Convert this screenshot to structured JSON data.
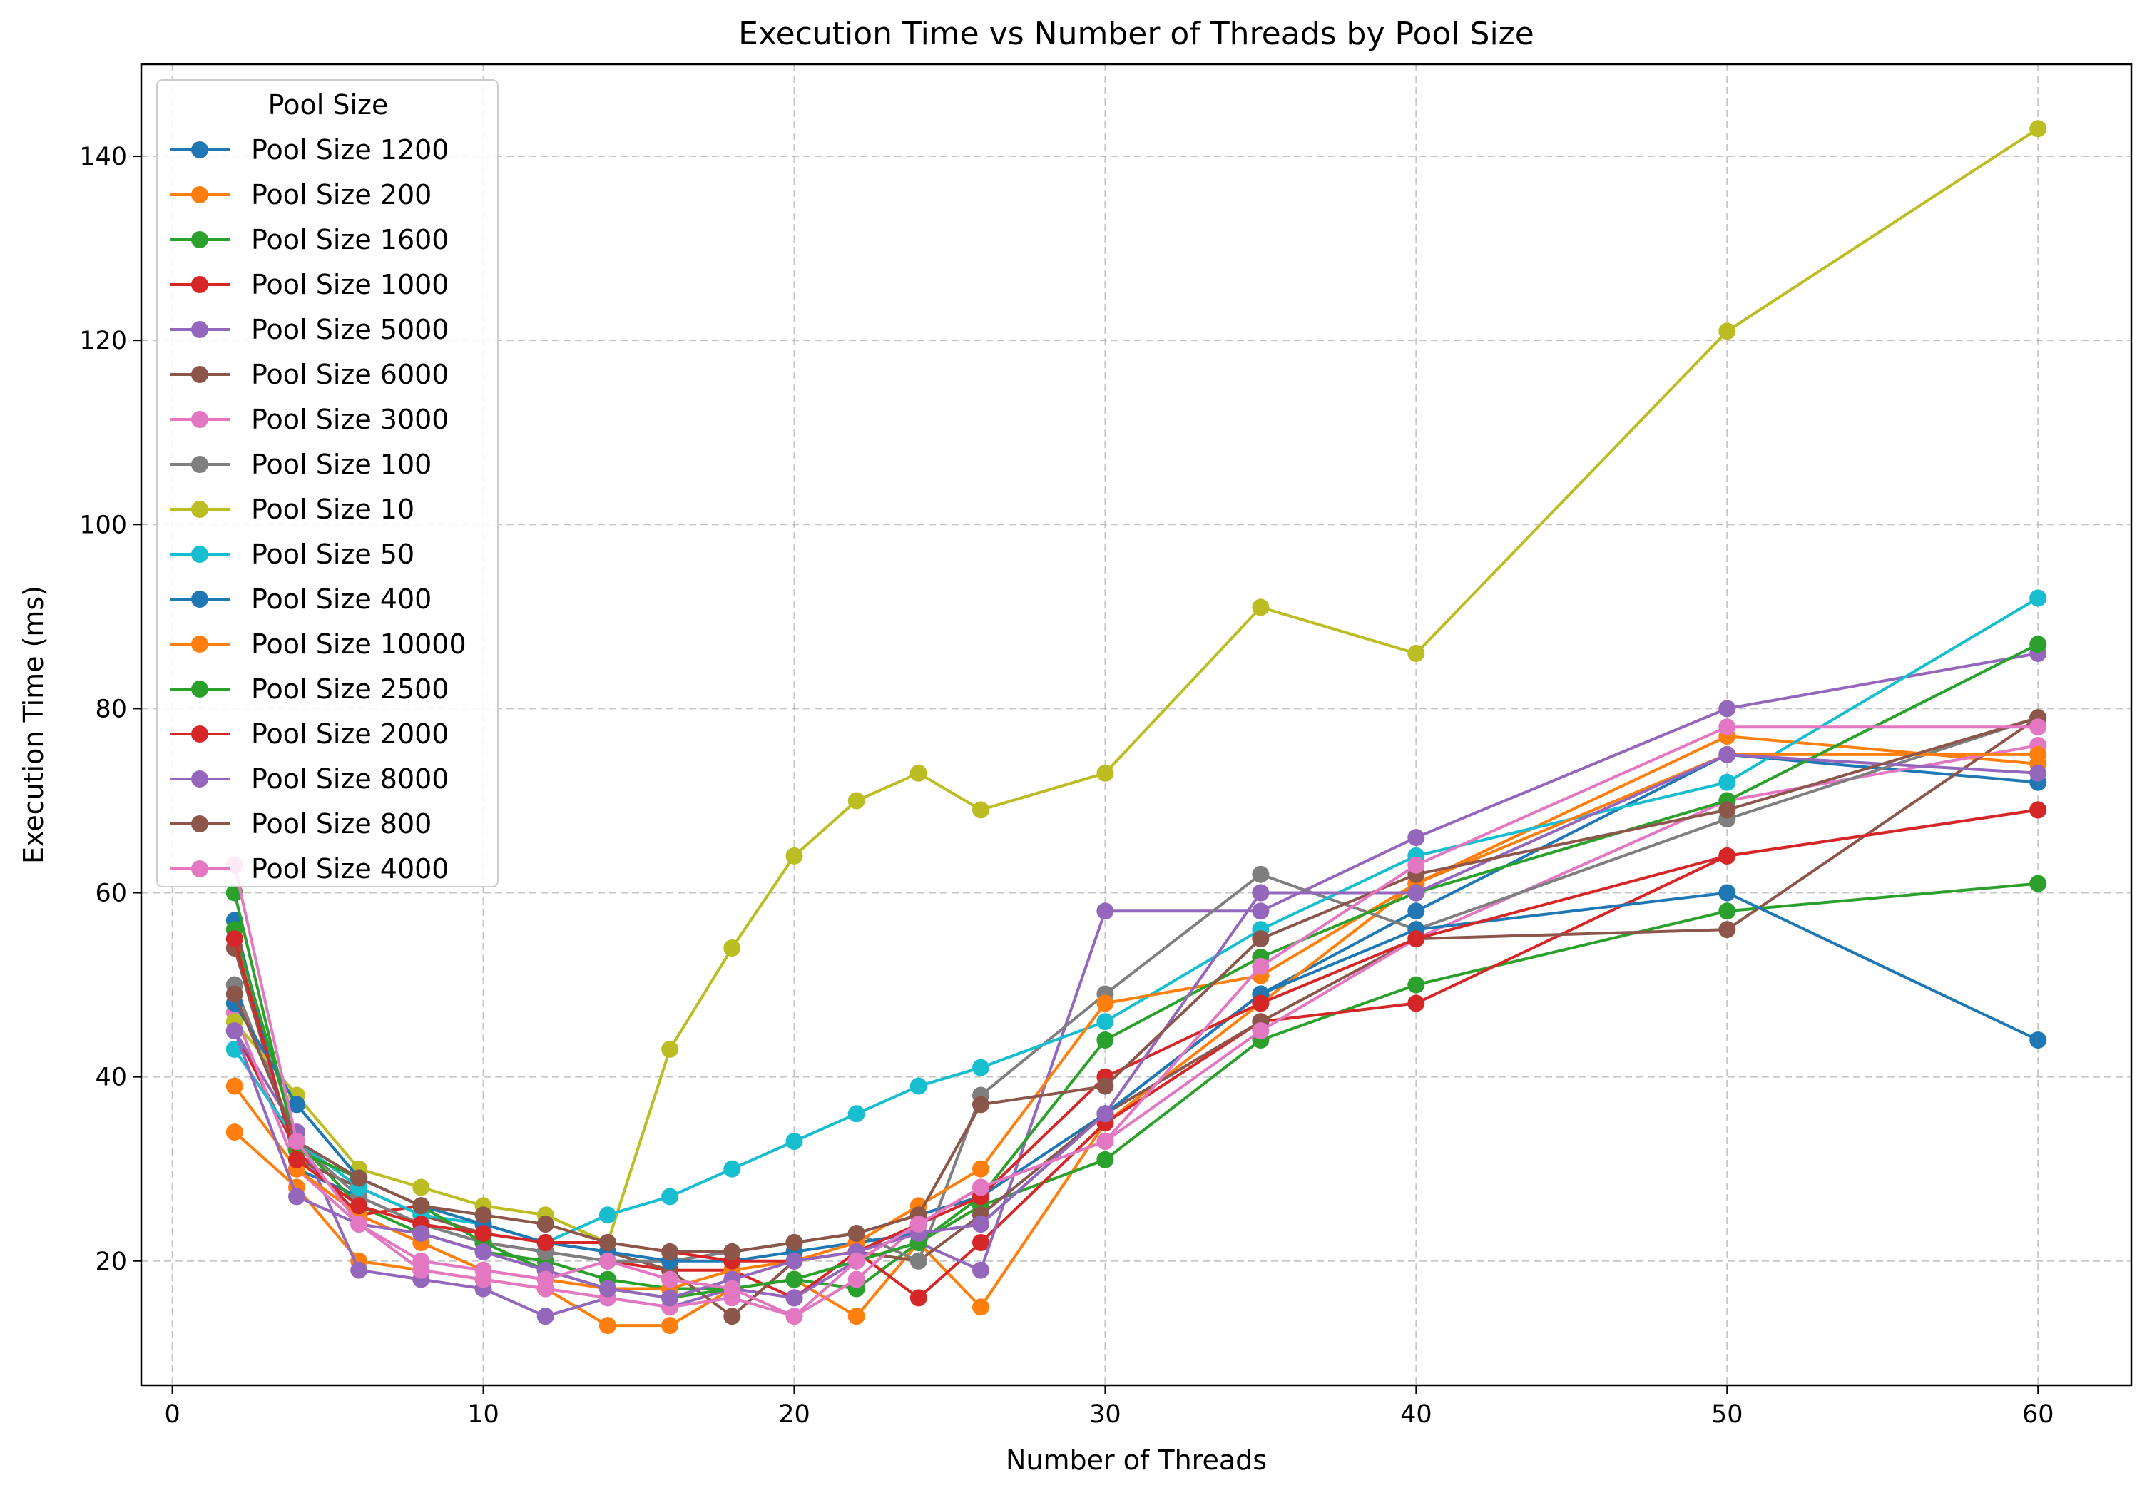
{
  "chart_data": {
    "type": "line",
    "title": "Execution Time vs Number of Threads by Pool Size",
    "xlabel": "Number of Threads",
    "ylabel": "Execution Time (ms)",
    "xlim": [
      -1,
      63
    ],
    "ylim": [
      6.5,
      150
    ],
    "xticks": [
      0,
      10,
      20,
      30,
      40,
      50,
      60
    ],
    "yticks": [
      20,
      40,
      60,
      80,
      100,
      120,
      140
    ],
    "grid": true,
    "legend_title": "Pool Size",
    "legend_position": "upper-left",
    "series": [
      {
        "name": "Pool Size 1200",
        "color": "#1f77b4",
        "points": [
          [
            2,
            57
          ],
          [
            4,
            30
          ],
          [
            6,
            27
          ],
          [
            8,
            24
          ],
          [
            10,
            22
          ],
          [
            12,
            21
          ],
          [
            14,
            20
          ],
          [
            16,
            20
          ],
          [
            18,
            21
          ],
          [
            20,
            22
          ],
          [
            22,
            23
          ],
          [
            24,
            25
          ],
          [
            26,
            27
          ],
          [
            30,
            36
          ],
          [
            35,
            49
          ],
          [
            40,
            58
          ],
          [
            50,
            75
          ],
          [
            60,
            72
          ]
        ]
      },
      {
        "name": "Pool Size 200",
        "color": "#ff7f0e",
        "points": [
          [
            2,
            34
          ],
          [
            4,
            28
          ],
          [
            6,
            20
          ],
          [
            8,
            19
          ],
          [
            10,
            18
          ],
          [
            12,
            17
          ],
          [
            14,
            13
          ],
          [
            16,
            13
          ],
          [
            18,
            17
          ],
          [
            20,
            18
          ],
          [
            22,
            14
          ],
          [
            24,
            22
          ],
          [
            26,
            15
          ],
          [
            30,
            35
          ],
          [
            35,
            48
          ],
          [
            40,
            61
          ],
          [
            50,
            77
          ],
          [
            60,
            74
          ]
        ]
      },
      {
        "name": "Pool Size 1600",
        "color": "#2ca02c",
        "points": [
          [
            2,
            56
          ],
          [
            4,
            33
          ],
          [
            6,
            26
          ],
          [
            8,
            23
          ],
          [
            10,
            21
          ],
          [
            12,
            20
          ],
          [
            14,
            18
          ],
          [
            16,
            17
          ],
          [
            18,
            17
          ],
          [
            20,
            18
          ],
          [
            22,
            17
          ],
          [
            24,
            22
          ],
          [
            26,
            26
          ],
          [
            30,
            31
          ],
          [
            35,
            44
          ],
          [
            40,
            50
          ],
          [
            50,
            58
          ],
          [
            60,
            61
          ]
        ]
      },
      {
        "name": "Pool Size 1000",
        "color": "#d62728",
        "points": [
          [
            2,
            45
          ],
          [
            4,
            32
          ],
          [
            6,
            25
          ],
          [
            8,
            26
          ],
          [
            10,
            22
          ],
          [
            12,
            21
          ],
          [
            14,
            20
          ],
          [
            16,
            19
          ],
          [
            18,
            19
          ],
          [
            20,
            16
          ],
          [
            22,
            21
          ],
          [
            24,
            16
          ],
          [
            26,
            22
          ],
          [
            30,
            35
          ],
          [
            35,
            46
          ],
          [
            40,
            48
          ],
          [
            50,
            64
          ],
          [
            60,
            69
          ]
        ]
      },
      {
        "name": "Pool Size 5000",
        "color": "#9467bd",
        "points": [
          [
            2,
            45
          ],
          [
            4,
            34
          ],
          [
            6,
            19
          ],
          [
            8,
            18
          ],
          [
            10,
            17
          ],
          [
            12,
            14
          ],
          [
            14,
            16
          ],
          [
            16,
            15
          ],
          [
            18,
            17
          ],
          [
            20,
            16
          ],
          [
            22,
            20
          ],
          [
            24,
            22
          ],
          [
            26,
            19
          ],
          [
            30,
            58
          ],
          [
            35,
            58
          ],
          [
            40,
            66
          ],
          [
            50,
            80
          ],
          [
            60,
            86
          ]
        ]
      },
      {
        "name": "Pool Size 6000",
        "color": "#8c564b",
        "points": [
          [
            2,
            54
          ],
          [
            4,
            31
          ],
          [
            6,
            28
          ],
          [
            8,
            25
          ],
          [
            10,
            23
          ],
          [
            12,
            22
          ],
          [
            14,
            21
          ],
          [
            16,
            19
          ],
          [
            18,
            14
          ],
          [
            20,
            20
          ],
          [
            22,
            21
          ],
          [
            24,
            20
          ],
          [
            26,
            25
          ],
          [
            30,
            36
          ],
          [
            35,
            46
          ],
          [
            40,
            55
          ],
          [
            50,
            56
          ],
          [
            60,
            79
          ]
        ]
      },
      {
        "name": "Pool Size 3000",
        "color": "#e377c2",
        "points": [
          [
            2,
            47
          ],
          [
            4,
            30
          ],
          [
            6,
            24
          ],
          [
            8,
            19
          ],
          [
            10,
            18
          ],
          [
            12,
            17
          ],
          [
            14,
            16
          ],
          [
            16,
            15
          ],
          [
            18,
            16
          ],
          [
            20,
            14
          ],
          [
            22,
            18
          ],
          [
            24,
            24
          ],
          [
            26,
            28
          ],
          [
            30,
            33
          ],
          [
            35,
            45
          ],
          [
            40,
            55
          ],
          [
            50,
            70
          ],
          [
            60,
            76
          ]
        ]
      },
      {
        "name": "Pool Size 100",
        "color": "#7f7f7f",
        "points": [
          [
            2,
            50
          ],
          [
            4,
            33
          ],
          [
            6,
            27
          ],
          [
            8,
            24
          ],
          [
            10,
            22
          ],
          [
            12,
            21
          ],
          [
            14,
            20
          ],
          [
            16,
            20
          ],
          [
            18,
            21
          ],
          [
            20,
            22
          ],
          [
            22,
            23
          ],
          [
            24,
            20
          ],
          [
            26,
            38
          ],
          [
            30,
            49
          ],
          [
            35,
            62
          ],
          [
            40,
            56
          ],
          [
            50,
            68
          ],
          [
            60,
            79
          ]
        ]
      },
      {
        "name": "Pool Size 10",
        "color": "#bcbd22",
        "points": [
          [
            2,
            46
          ],
          [
            4,
            38
          ],
          [
            6,
            30
          ],
          [
            8,
            28
          ],
          [
            10,
            26
          ],
          [
            12,
            25
          ],
          [
            14,
            22
          ],
          [
            16,
            43
          ],
          [
            18,
            54
          ],
          [
            20,
            64
          ],
          [
            22,
            70
          ],
          [
            24,
            73
          ],
          [
            26,
            69
          ],
          [
            30,
            73
          ],
          [
            35,
            91
          ],
          [
            40,
            86
          ],
          [
            50,
            121
          ],
          [
            60,
            143
          ]
        ]
      },
      {
        "name": "Pool Size 50",
        "color": "#17becf",
        "points": [
          [
            2,
            43
          ],
          [
            4,
            33
          ],
          [
            6,
            28
          ],
          [
            8,
            25
          ],
          [
            10,
            24
          ],
          [
            12,
            22
          ],
          [
            14,
            25
          ],
          [
            16,
            27
          ],
          [
            18,
            30
          ],
          [
            20,
            33
          ],
          [
            22,
            36
          ],
          [
            24,
            39
          ],
          [
            26,
            41
          ],
          [
            30,
            46
          ],
          [
            35,
            56
          ],
          [
            40,
            64
          ],
          [
            50,
            72
          ],
          [
            60,
            92
          ]
        ]
      },
      {
        "name": "Pool Size 400",
        "color": "#1f77b4",
        "points": [
          [
            2,
            48
          ],
          [
            4,
            37
          ],
          [
            6,
            29
          ],
          [
            8,
            26
          ],
          [
            10,
            24
          ],
          [
            12,
            22
          ],
          [
            14,
            21
          ],
          [
            16,
            20
          ],
          [
            18,
            20
          ],
          [
            20,
            21
          ],
          [
            22,
            22
          ],
          [
            24,
            23
          ],
          [
            26,
            24
          ],
          [
            30,
            36
          ],
          [
            35,
            49
          ],
          [
            40,
            56
          ],
          [
            50,
            60
          ],
          [
            60,
            44
          ]
        ]
      },
      {
        "name": "Pool Size 10000",
        "color": "#ff7f0e",
        "points": [
          [
            2,
            39
          ],
          [
            4,
            30
          ],
          [
            6,
            25
          ],
          [
            8,
            22
          ],
          [
            10,
            19
          ],
          [
            12,
            18
          ],
          [
            14,
            17
          ],
          [
            16,
            17
          ],
          [
            18,
            19
          ],
          [
            20,
            20
          ],
          [
            22,
            22
          ],
          [
            24,
            26
          ],
          [
            26,
            30
          ],
          [
            30,
            48
          ],
          [
            35,
            51
          ],
          [
            40,
            61
          ],
          [
            50,
            75
          ],
          [
            60,
            75
          ]
        ]
      },
      {
        "name": "Pool Size 2500",
        "color": "#2ca02c",
        "points": [
          [
            2,
            60
          ],
          [
            4,
            32
          ],
          [
            6,
            29
          ],
          [
            8,
            26
          ],
          [
            10,
            22
          ],
          [
            12,
            19
          ],
          [
            14,
            17
          ],
          [
            16,
            16
          ],
          [
            18,
            17
          ],
          [
            20,
            18
          ],
          [
            22,
            20
          ],
          [
            24,
            22
          ],
          [
            26,
            27
          ],
          [
            30,
            44
          ],
          [
            35,
            53
          ],
          [
            40,
            60
          ],
          [
            50,
            70
          ],
          [
            60,
            87
          ]
        ]
      },
      {
        "name": "Pool Size 2000",
        "color": "#d62728",
        "points": [
          [
            2,
            55
          ],
          [
            4,
            31
          ],
          [
            6,
            26
          ],
          [
            8,
            24
          ],
          [
            10,
            23
          ],
          [
            12,
            22
          ],
          [
            14,
            22
          ],
          [
            16,
            21
          ],
          [
            18,
            20
          ],
          [
            20,
            20
          ],
          [
            22,
            21
          ],
          [
            24,
            24
          ],
          [
            26,
            27
          ],
          [
            30,
            40
          ],
          [
            35,
            48
          ],
          [
            40,
            55
          ],
          [
            50,
            64
          ],
          [
            60,
            69
          ]
        ]
      },
      {
        "name": "Pool Size 8000",
        "color": "#9467bd",
        "points": [
          [
            2,
            45
          ],
          [
            4,
            27
          ],
          [
            6,
            24
          ],
          [
            8,
            23
          ],
          [
            10,
            21
          ],
          [
            12,
            19
          ],
          [
            14,
            17
          ],
          [
            16,
            16
          ],
          [
            18,
            18
          ],
          [
            20,
            20
          ],
          [
            22,
            21
          ],
          [
            24,
            23
          ],
          [
            26,
            24
          ],
          [
            30,
            36
          ],
          [
            35,
            60
          ],
          [
            40,
            60
          ],
          [
            50,
            75
          ],
          [
            60,
            73
          ]
        ]
      },
      {
        "name": "Pool Size 800",
        "color": "#8c564b",
        "points": [
          [
            2,
            49
          ],
          [
            4,
            33
          ],
          [
            6,
            29
          ],
          [
            8,
            26
          ],
          [
            10,
            25
          ],
          [
            12,
            24
          ],
          [
            14,
            22
          ],
          [
            16,
            21
          ],
          [
            18,
            21
          ],
          [
            20,
            22
          ],
          [
            22,
            23
          ],
          [
            24,
            25
          ],
          [
            26,
            37
          ],
          [
            30,
            39
          ],
          [
            35,
            55
          ],
          [
            40,
            62
          ],
          [
            50,
            69
          ],
          [
            60,
            79
          ]
        ]
      },
      {
        "name": "Pool Size 4000",
        "color": "#e377c2",
        "points": [
          [
            2,
            63
          ],
          [
            4,
            33
          ],
          [
            6,
            24
          ],
          [
            8,
            20
          ],
          [
            10,
            19
          ],
          [
            12,
            18
          ],
          [
            14,
            20
          ],
          [
            16,
            18
          ],
          [
            18,
            17
          ],
          [
            20,
            14
          ],
          [
            22,
            20
          ],
          [
            24,
            24
          ],
          [
            26,
            28
          ],
          [
            30,
            33
          ],
          [
            35,
            52
          ],
          [
            40,
            63
          ],
          [
            50,
            78
          ],
          [
            60,
            78
          ]
        ]
      }
    ]
  }
}
